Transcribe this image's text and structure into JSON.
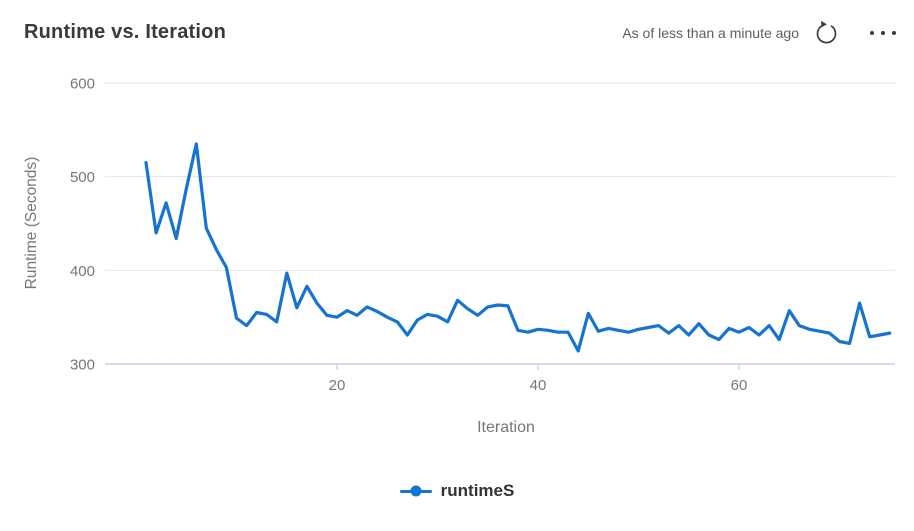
{
  "header": {
    "title": "Runtime vs. Iteration",
    "last_refresh": "As of less than a minute ago"
  },
  "colors": {
    "series_blue": "#1673d2",
    "title_text": "#3a3a3a",
    "muted_text": "#605e5c",
    "axis_text": "#777777",
    "gridline": "#e6e6e6",
    "axis_line": "#c3d2e9",
    "background": "#ffffff"
  },
  "chart_data": {
    "type": "line",
    "title": "Runtime vs. Iteration",
    "xlabel": "Iteration",
    "ylabel": "Runtime (Seconds)",
    "xlim": [
      1,
      75
    ],
    "ylim": [
      300,
      600
    ],
    "x_ticks": [
      20,
      40,
      60
    ],
    "y_ticks": [
      300,
      400,
      500,
      600
    ],
    "grid": "horizontal-only",
    "legend_position": "bottom-center",
    "series": [
      {
        "name": "runtimeS",
        "color": "#1673d2",
        "x_start": 1,
        "x_step": 1,
        "values": [
          515,
          440,
          472,
          434,
          487,
          535,
          445,
          422,
          403,
          349,
          341,
          355,
          353,
          345,
          397,
          360,
          383,
          365,
          352,
          350,
          357,
          352,
          361,
          356,
          350,
          345,
          331,
          347,
          353,
          351,
          345,
          368,
          359,
          352,
          361,
          363,
          362,
          336,
          334,
          337,
          336,
          334,
          334,
          314,
          354,
          335,
          338,
          336,
          334,
          337,
          339,
          341,
          333,
          341,
          331,
          343,
          331,
          326,
          338,
          334,
          339,
          331,
          341,
          326,
          357,
          341,
          337,
          335,
          333,
          324,
          322,
          365,
          329,
          331,
          333
        ]
      }
    ]
  }
}
